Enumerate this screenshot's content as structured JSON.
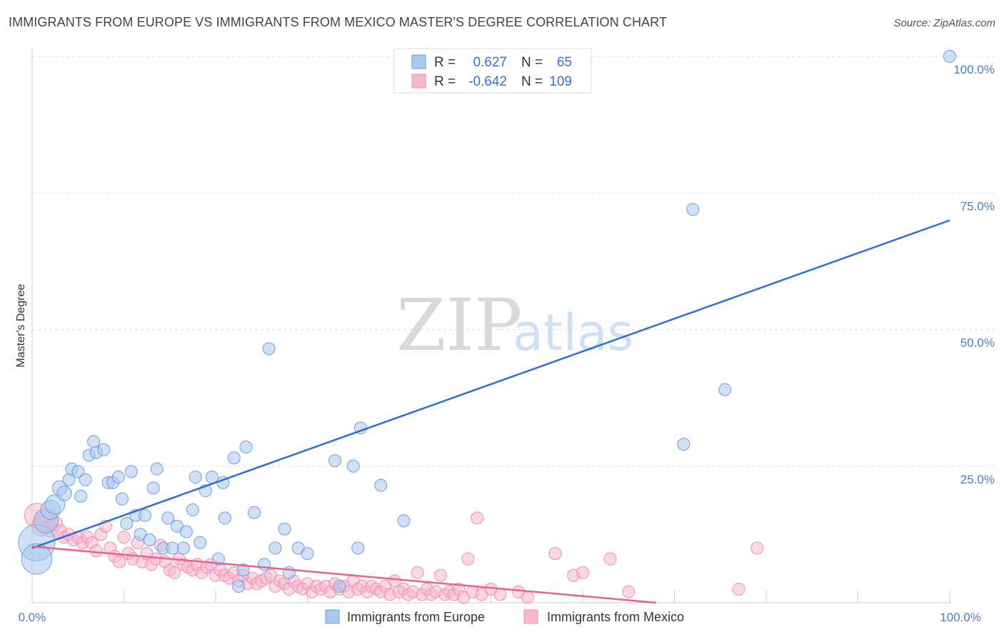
{
  "title": "IMMIGRANTS FROM EUROPE VS IMMIGRANTS FROM MEXICO MASTER'S DEGREE CORRELATION CHART",
  "source": "Source: ZipAtlas.com",
  "watermark": {
    "zip": "ZIP",
    "atlas": "atlas"
  },
  "legend": {
    "europe": {
      "r_label": "R =",
      "r_value": "0.627",
      "n_label": "N =",
      "n_value": "65"
    },
    "mexico": {
      "r_label": "R =",
      "r_value": "-0.642",
      "n_label": "N =",
      "n_value": "109"
    }
  },
  "bottom_legend": [
    "Immigrants from Europe",
    "Immigrants from Mexico"
  ],
  "colors": {
    "europe_fill": "#a9c8f0",
    "europe_stroke": "#6f9fdd",
    "europe_line": "#2e6fd0",
    "mexico_fill": "#f7b8cb",
    "mexico_stroke": "#ec8fad",
    "mexico_line": "#e8628f",
    "grid": "#dddddd",
    "tick_text": "#4a7cc9"
  },
  "chart_data": {
    "type": "scatter",
    "title": "IMMIGRANTS FROM EUROPE VS IMMIGRANTS FROM MEXICO MASTER'S DEGREE CORRELATION CHART",
    "xlabel": "",
    "ylabel": "Master's Degree",
    "xlim": [
      0,
      100
    ],
    "ylim": [
      0,
      100
    ],
    "x_tick_labels": [
      "0.0%",
      "100.0%"
    ],
    "y_tick_labels": [
      "25.0%",
      "50.0%",
      "75.0%",
      "100.0%"
    ],
    "y_ticks": [
      25,
      50,
      75,
      100
    ],
    "series": [
      {
        "name": "Immigrants from Europe",
        "r": 0.627,
        "n": 65,
        "trend": {
          "x0": 0,
          "y0": 10,
          "x1": 100,
          "y1": 70
        },
        "points": [
          [
            0.5,
            11,
            3
          ],
          [
            0.5,
            8,
            2.5
          ],
          [
            1.5,
            15,
            2
          ],
          [
            2,
            17,
            1.6
          ],
          [
            2.5,
            18,
            1.6
          ],
          [
            3,
            21,
            1.2
          ],
          [
            3.5,
            20,
            1.2
          ],
          [
            4,
            22.5,
            1
          ],
          [
            4.3,
            24.5,
            1
          ],
          [
            5,
            24,
            1
          ],
          [
            5.3,
            19.5,
            1
          ],
          [
            5.8,
            22.5,
            1
          ],
          [
            6.2,
            27,
            1
          ],
          [
            6.7,
            29.5,
            1
          ],
          [
            7,
            27.5,
            1
          ],
          [
            7.8,
            28,
            1
          ],
          [
            8.3,
            22,
            1
          ],
          [
            8.8,
            22,
            1
          ],
          [
            9.4,
            23,
            1
          ],
          [
            9.8,
            19,
            1
          ],
          [
            10.3,
            14.5,
            1
          ],
          [
            10.8,
            24,
            1
          ],
          [
            11.3,
            16,
            1
          ],
          [
            11.8,
            12.5,
            1
          ],
          [
            12.3,
            16,
            1
          ],
          [
            12.8,
            11.5,
            1
          ],
          [
            13.2,
            21,
            1
          ],
          [
            13.6,
            24.5,
            1
          ],
          [
            14.3,
            10,
            1
          ],
          [
            14.8,
            15.5,
            1
          ],
          [
            15.3,
            10,
            1
          ],
          [
            15.8,
            14,
            1
          ],
          [
            16.5,
            10,
            1
          ],
          [
            16.8,
            13,
            1
          ],
          [
            17.5,
            17,
            1
          ],
          [
            17.8,
            23,
            1
          ],
          [
            18.3,
            11,
            1
          ],
          [
            18.9,
            20.5,
            1
          ],
          [
            19.6,
            23,
            1
          ],
          [
            20.3,
            8,
            1
          ],
          [
            20.8,
            22,
            1
          ],
          [
            21,
            15.5,
            1
          ],
          [
            22,
            26.5,
            1
          ],
          [
            22.5,
            3,
            1
          ],
          [
            23,
            6,
            1
          ],
          [
            23.3,
            28.5,
            1
          ],
          [
            24.2,
            16.5,
            1
          ],
          [
            25.3,
            7,
            1
          ],
          [
            25.8,
            46.5,
            1
          ],
          [
            26.5,
            10,
            1
          ],
          [
            27.5,
            13.5,
            1
          ],
          [
            28,
            5.5,
            1
          ],
          [
            29,
            10,
            1
          ],
          [
            30,
            9,
            1
          ],
          [
            33,
            26,
            1
          ],
          [
            33.5,
            3,
            1
          ],
          [
            35,
            25,
            1
          ],
          [
            35.5,
            10,
            1
          ],
          [
            35.8,
            32,
            1
          ],
          [
            38,
            21.5,
            1
          ],
          [
            40.5,
            15,
            1
          ],
          [
            71,
            29,
            1
          ],
          [
            72,
            72,
            1
          ],
          [
            75.5,
            39,
            1
          ],
          [
            100,
            100,
            1
          ]
        ]
      },
      {
        "name": "Immigrants from Mexico",
        "r": -0.642,
        "n": 109,
        "trend": {
          "x0": 0,
          "y0": 10.3,
          "x1": 68,
          "y1": 0
        },
        "points": [
          [
            0.5,
            16,
            2
          ],
          [
            1,
            14,
            1.6
          ],
          [
            1.5,
            15,
            1.6
          ],
          [
            2,
            13.5,
            1.3
          ],
          [
            2.5,
            14.5,
            1.2
          ],
          [
            3,
            13,
            1.2
          ],
          [
            3.5,
            12,
            1
          ],
          [
            4,
            12.5,
            1
          ],
          [
            4.5,
            11.5,
            1
          ],
          [
            5,
            12,
            1
          ],
          [
            5.5,
            11,
            1
          ],
          [
            6,
            12,
            1
          ],
          [
            6.5,
            11,
            1
          ],
          [
            7,
            9.5,
            1
          ],
          [
            7.5,
            12.5,
            1
          ],
          [
            8,
            14,
            1
          ],
          [
            8.5,
            10,
            1
          ],
          [
            9,
            8.5,
            1
          ],
          [
            9.5,
            7.5,
            1
          ],
          [
            10,
            12,
            1
          ],
          [
            10.5,
            9,
            1
          ],
          [
            11,
            8,
            1
          ],
          [
            11.5,
            11,
            1
          ],
          [
            12,
            7.5,
            1
          ],
          [
            12.5,
            9,
            1
          ],
          [
            13,
            7,
            1
          ],
          [
            13.5,
            8,
            1
          ],
          [
            14,
            10.5,
            1
          ],
          [
            14.5,
            7.5,
            1
          ],
          [
            15,
            6,
            1
          ],
          [
            15.5,
            5.5,
            1
          ],
          [
            16,
            8,
            1
          ],
          [
            16.5,
            7,
            1
          ],
          [
            17,
            6.5,
            1
          ],
          [
            17.5,
            6,
            1
          ],
          [
            18,
            7,
            1
          ],
          [
            18.5,
            5.5,
            1
          ],
          [
            19,
            6.5,
            1
          ],
          [
            19.5,
            7,
            1
          ],
          [
            20,
            5,
            1
          ],
          [
            20.5,
            6,
            1
          ],
          [
            21,
            5,
            1
          ],
          [
            21.5,
            4.5,
            1
          ],
          [
            22,
            5.5,
            1
          ],
          [
            22.5,
            4,
            1
          ],
          [
            23,
            5,
            1
          ],
          [
            23.5,
            3.5,
            1
          ],
          [
            24,
            4.5,
            1
          ],
          [
            24.5,
            3.5,
            1
          ],
          [
            25,
            4,
            1
          ],
          [
            25.5,
            4.5,
            1
          ],
          [
            26,
            5,
            1
          ],
          [
            26.5,
            3,
            1
          ],
          [
            27,
            4,
            1
          ],
          [
            27.5,
            3.5,
            1
          ],
          [
            28,
            2.5,
            1
          ],
          [
            28.5,
            4,
            1
          ],
          [
            29,
            3,
            1
          ],
          [
            29.5,
            2.5,
            1
          ],
          [
            30,
            3.5,
            1
          ],
          [
            30.5,
            2,
            1
          ],
          [
            31,
            3,
            1
          ],
          [
            31.5,
            2.5,
            1
          ],
          [
            32,
            3,
            1
          ],
          [
            32.5,
            2,
            1
          ],
          [
            33,
            3.5,
            1
          ],
          [
            33.5,
            2.5,
            1
          ],
          [
            34,
            3,
            1
          ],
          [
            34.5,
            2,
            1
          ],
          [
            35,
            4,
            1
          ],
          [
            35.5,
            2.5,
            1
          ],
          [
            36,
            3,
            1
          ],
          [
            36.5,
            2,
            1
          ],
          [
            37,
            3,
            1
          ],
          [
            37.5,
            2.5,
            1
          ],
          [
            38,
            2,
            1
          ],
          [
            38.5,
            3,
            1
          ],
          [
            39,
            1.5,
            1
          ],
          [
            39.5,
            4,
            1
          ],
          [
            40,
            2,
            1
          ],
          [
            40.5,
            2.5,
            1
          ],
          [
            41,
            1.5,
            1
          ],
          [
            41.5,
            2,
            1
          ],
          [
            42,
            5.5,
            1
          ],
          [
            42.5,
            1.5,
            1
          ],
          [
            43,
            2.5,
            1
          ],
          [
            43.5,
            1.5,
            1
          ],
          [
            44,
            2,
            1
          ],
          [
            44.5,
            5,
            1
          ],
          [
            45,
            1.5,
            1
          ],
          [
            45.5,
            2,
            1
          ],
          [
            46,
            1.5,
            1
          ],
          [
            46.5,
            2.5,
            1
          ],
          [
            47,
            1,
            1
          ],
          [
            47.5,
            8,
            1
          ],
          [
            48,
            2,
            1
          ],
          [
            48.5,
            15.5,
            1
          ],
          [
            49,
            1.5,
            1
          ],
          [
            50,
            2.5,
            1
          ],
          [
            51,
            1.5,
            1
          ],
          [
            53,
            2,
            1
          ],
          [
            54,
            1,
            1
          ],
          [
            57,
            9,
            1
          ],
          [
            59,
            5,
            1
          ],
          [
            60,
            5.5,
            1
          ],
          [
            63,
            8,
            1
          ],
          [
            65,
            2,
            1
          ],
          [
            77,
            2.5,
            1
          ],
          [
            79,
            10,
            1
          ]
        ]
      }
    ]
  }
}
